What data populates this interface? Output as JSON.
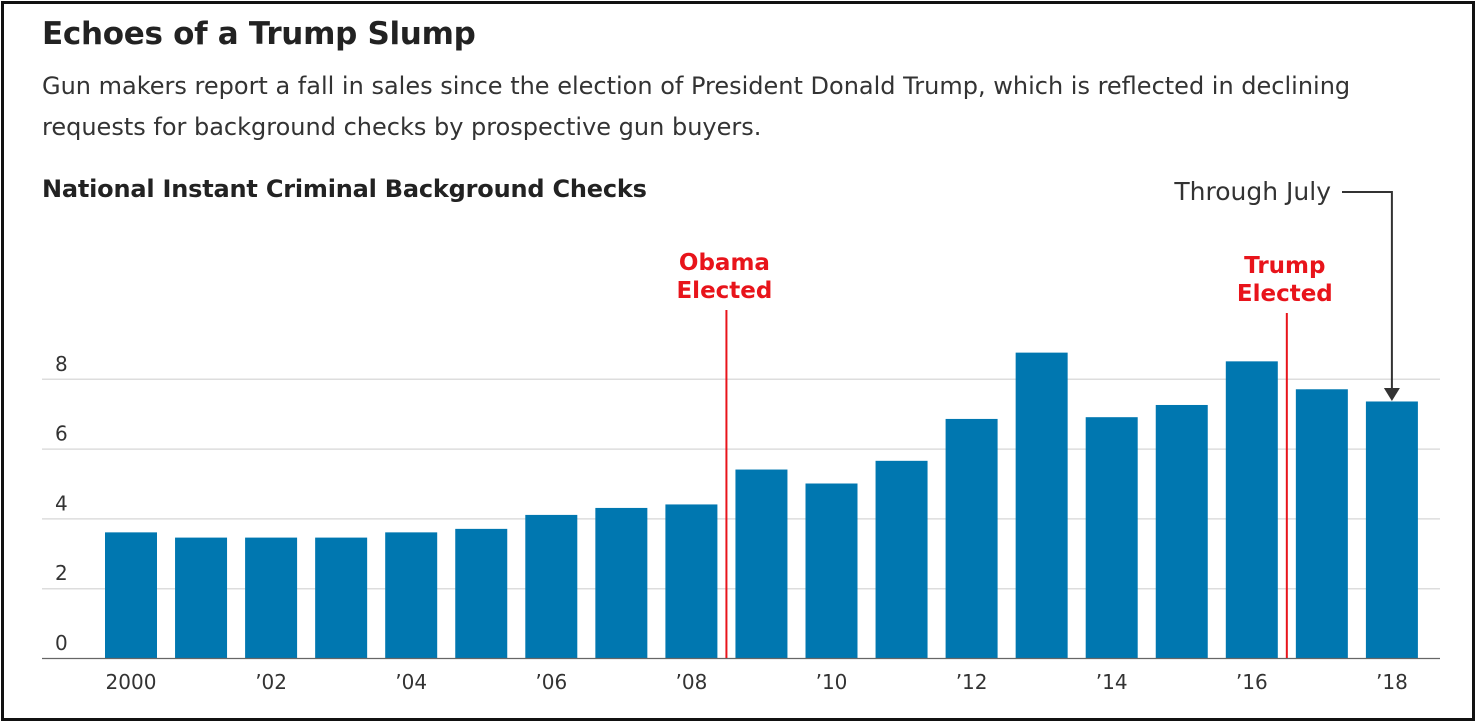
{
  "colors": {
    "bar": "#0077b0",
    "annotation_red": "#e8141b",
    "gridline": "#dddddd",
    "axis": "#666666"
  },
  "chart_data": {
    "type": "bar",
    "title": "Echoes of a Trump Slump",
    "subtitle": "Gun makers report a fall in sales since the election of President Donald Trump, which is reflected in declining requests for background checks by prospective gun buyers.",
    "chart_label": "National Instant Criminal Background Checks",
    "categories": [
      "2000",
      "2001",
      "2002",
      "2003",
      "2004",
      "2005",
      "2006",
      "2007",
      "2008",
      "2009",
      "2010",
      "2011",
      "2012",
      "2013",
      "2014",
      "2015",
      "2016",
      "2017",
      "2018"
    ],
    "x_tick_labels": [
      "2000",
      "",
      "’02",
      "",
      "’04",
      "",
      "’06",
      "",
      "’08",
      "",
      "’10",
      "",
      "’12",
      "",
      "’14",
      "",
      "’16",
      "",
      "’18"
    ],
    "values": [
      3.6,
      3.45,
      3.45,
      3.45,
      3.6,
      3.7,
      4.1,
      4.3,
      4.4,
      5.4,
      5.0,
      5.65,
      6.85,
      8.75,
      6.9,
      7.25,
      8.5,
      7.7,
      7.35
    ],
    "y_ticks": [
      0,
      2,
      4,
      6,
      8
    ],
    "ylim": [
      0,
      9
    ],
    "grid": true,
    "annotations": {
      "obama": {
        "line1": "Obama",
        "line2": "Elected",
        "x_year": 2008.5
      },
      "trump": {
        "line1": "Trump",
        "line2": "Elected",
        "x_year": 2016.5
      },
      "through_july": {
        "text": "Through July",
        "target_year": 2018
      }
    }
  }
}
